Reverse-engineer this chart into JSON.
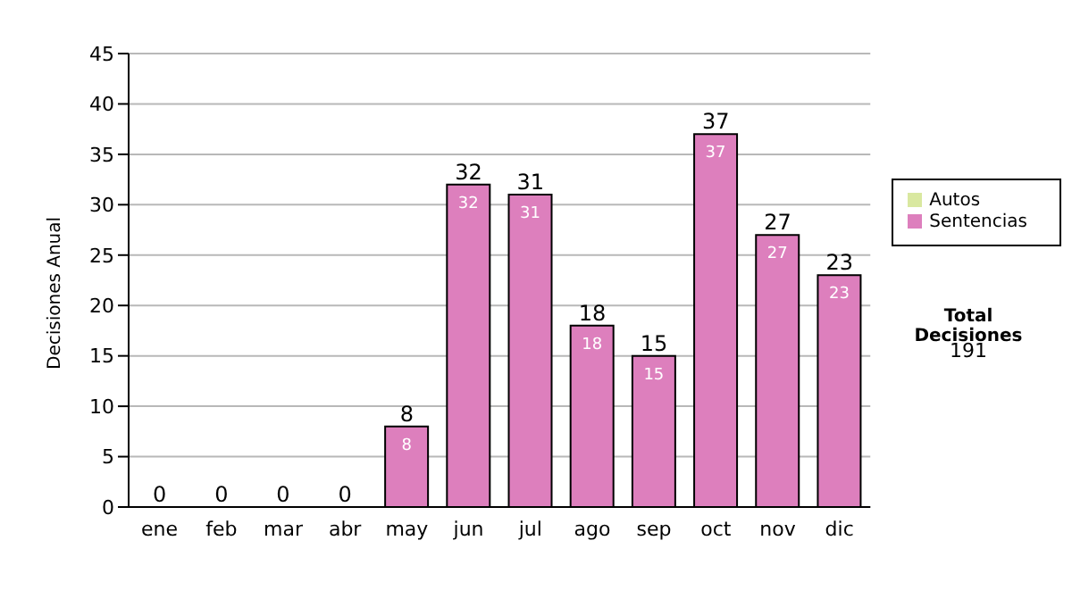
{
  "chart_data": {
    "type": "bar",
    "ylabel": "Decisiones Anual",
    "categories": [
      "ene",
      "feb",
      "mar",
      "abr",
      "may",
      "jun",
      "jul",
      "ago",
      "sep",
      "oct",
      "nov",
      "dic"
    ],
    "stacked": true,
    "series": [
      {
        "name": "Sentencias",
        "color": "#dd7fbd",
        "values": [
          0,
          0,
          0,
          0,
          8,
          32,
          31,
          18,
          15,
          37,
          27,
          23
        ],
        "value_labels": [
          null,
          null,
          null,
          null,
          "8",
          "32",
          "31",
          "18",
          "15",
          "37",
          "27",
          "23"
        ]
      },
      {
        "name": "Autos",
        "color": "#d9e8a0",
        "values": [
          0,
          0,
          0,
          0,
          0,
          0,
          0,
          0,
          0,
          0,
          0,
          0
        ]
      }
    ],
    "totals": [
      "0",
      "0",
      "0",
      "0",
      "8",
      "32",
      "31",
      "18",
      "15",
      "37",
      "27",
      "23"
    ],
    "ylim": [
      0,
      45
    ],
    "yticks": [
      0,
      5,
      10,
      15,
      20,
      25,
      30,
      35,
      40,
      45
    ],
    "grid": "y",
    "legend": "right",
    "annotations": [
      "Total Decisiones",
      "191"
    ]
  }
}
